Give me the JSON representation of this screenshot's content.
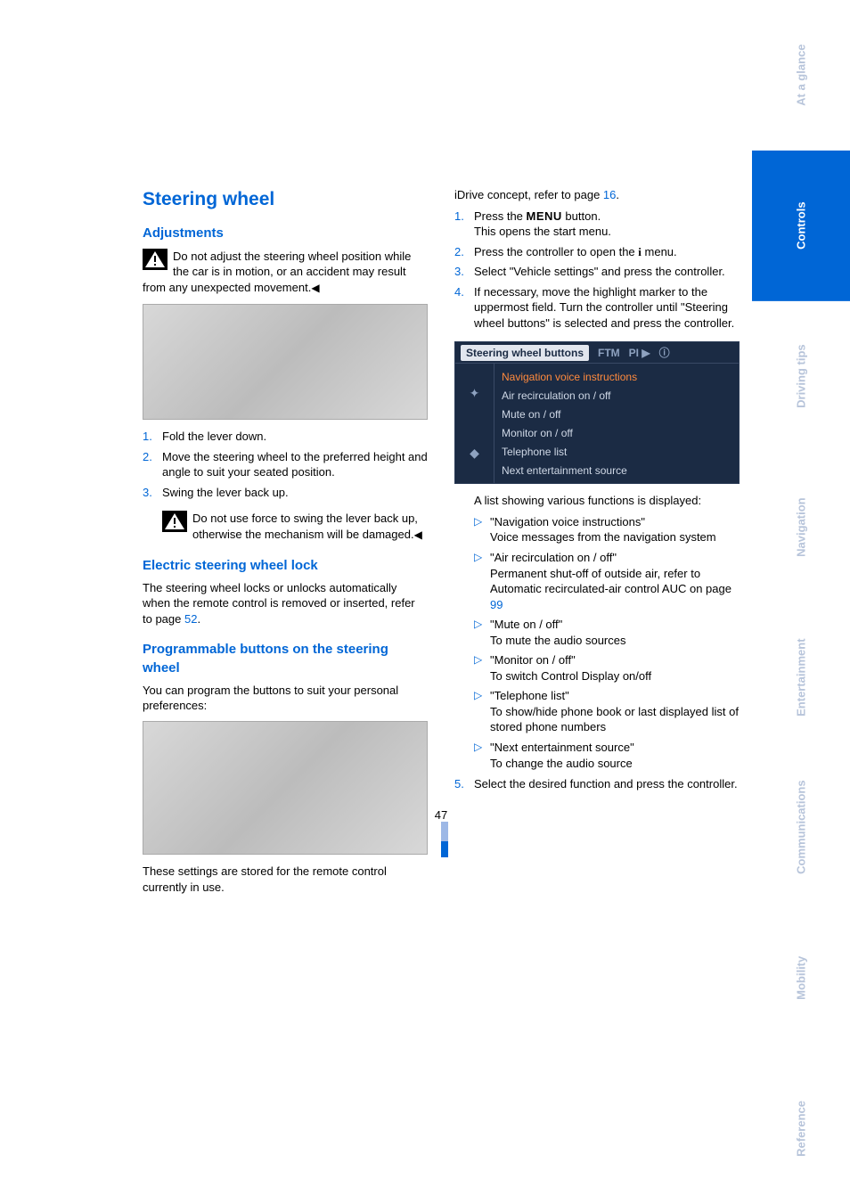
{
  "page_number": "47",
  "colors": {
    "accent": "#0066d6",
    "text": "#000000",
    "sidebar_active_bg": "#0066d6",
    "sidebar_active_fg": "#ffffff",
    "sidebar_inactive_fg": "#b7c4da",
    "idrive_bg": "#1b2b44",
    "idrive_highlight": "#ff8a3d"
  },
  "left": {
    "h1": "Steering wheel",
    "h2_adjustments": "Adjustments",
    "warn1": "Do not adjust the steering wheel position while the car is in motion, or an accident may result from any unexpected movement.",
    "steps": [
      "Fold the lever down.",
      "Move the steering wheel to the preferred height and angle to suit your seated position.",
      "Swing the lever back up."
    ],
    "warn2": "Do not use force to swing the lever back up, otherwise the mechanism will be damaged.",
    "h2_lock": "Electric steering wheel lock",
    "lock_text_a": "The steering wheel locks or unlocks automatically when the remote control is removed or inserted, refer to page ",
    "lock_page": "52",
    "lock_text_b": ".",
    "h2_prog": "Programmable buttons on the steering wheel",
    "prog_text": "You can program the buttons to suit your personal preferences:",
    "footer": "These settings are stored for the remote control currently in use."
  },
  "right": {
    "intro_a": "iDrive concept, refer to page ",
    "intro_page": "16",
    "intro_b": ".",
    "steps": [
      {
        "line1": "Press the ",
        "icon": "MENU",
        "line2": " button.",
        "line3": "This opens the start menu."
      },
      {
        "line1": "Press the controller to open the ",
        "icon": "i",
        "line2": " menu."
      },
      {
        "line1": "Select \"Vehicle settings\" and press the controller."
      },
      {
        "line1": "If necessary, move the highlight marker to the uppermost field. Turn the controller until \"Steering wheel buttons\" is selected and press the controller."
      }
    ],
    "idrive": {
      "header_selected": "Steering wheel buttons",
      "header_tabs": [
        "FTM",
        "PI ▶",
        "ⓘ"
      ],
      "side_icons": [
        "✦",
        "◆"
      ],
      "items": [
        "Navigation voice instructions",
        "Air recirculation on / off",
        "Mute on / off",
        "Monitor on / off",
        "Telephone list",
        "Next entertainment source"
      ],
      "highlight_index": 0
    },
    "after_img": "A list showing various functions is displayed:",
    "bullets": [
      {
        "title": "\"Navigation voice instructions\"",
        "body": "Voice messages from the navigation system"
      },
      {
        "title": "\"Air recirculation on / off\"",
        "body_a": "Permanent shut-off of outside air, refer to Automatic recirculated-air control AUC on page ",
        "page": "99"
      },
      {
        "title": "\"Mute on / off\"",
        "body": "To mute the audio sources"
      },
      {
        "title": "\"Monitor on / off\"",
        "body": "To switch Control Display on/off"
      },
      {
        "title": "\"Telephone list\"",
        "body": "To show/hide phone book or last displayed list of stored phone numbers"
      },
      {
        "title": "\"Next entertainment source\"",
        "body": "To change the audio source"
      }
    ],
    "step5": "Select the desired function and press the controller."
  },
  "sidebar": [
    {
      "label": "At a glance",
      "active": false
    },
    {
      "label": "Controls",
      "active": true
    },
    {
      "label": "Driving tips",
      "active": false
    },
    {
      "label": "Navigation",
      "active": false
    },
    {
      "label": "Entertainment",
      "active": false
    },
    {
      "label": "Communications",
      "active": false
    },
    {
      "label": "Mobility",
      "active": false
    },
    {
      "label": "Reference",
      "active": false
    }
  ]
}
